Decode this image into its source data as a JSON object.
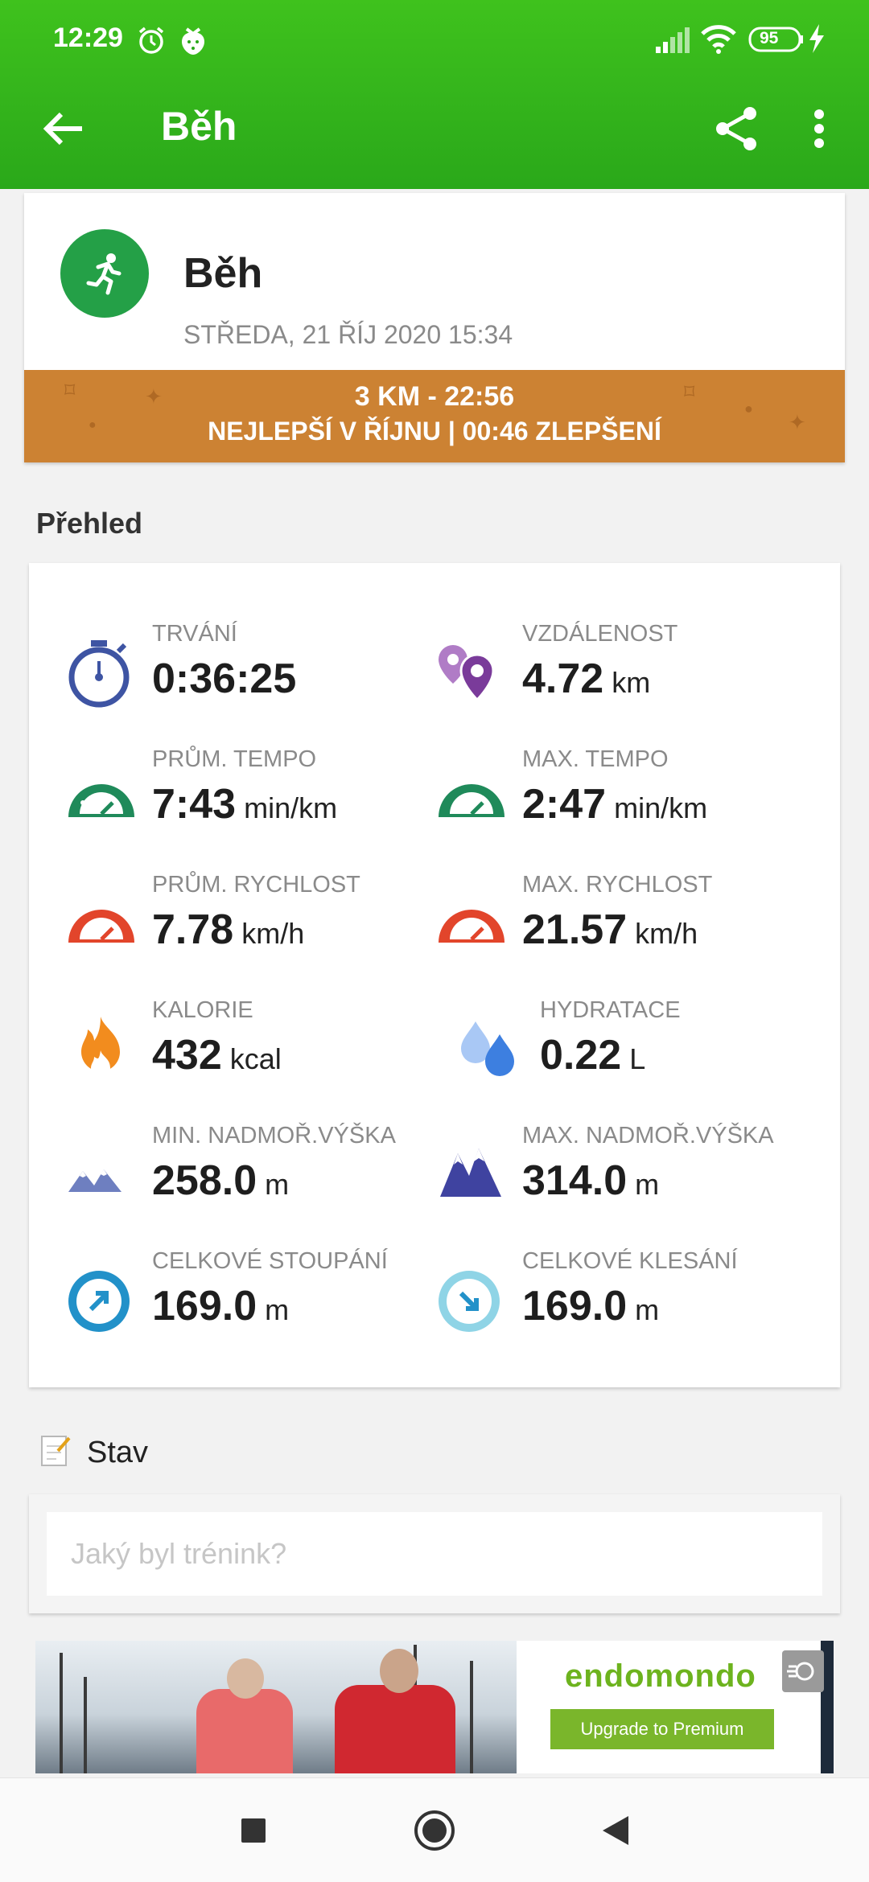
{
  "status_bar": {
    "time": "12:29",
    "battery": "95"
  },
  "toolbar": {
    "title": "Běh"
  },
  "workout": {
    "title": "Běh",
    "date": "STŘEDA, 21 ŘÍJ 2020 15:34",
    "banner_line1": "3 KM  -  22:56",
    "banner_line2": "NEJLEPŠÍ V ŘÍJNU  |  00:46 ZLEPŠENÍ"
  },
  "overview": {
    "section_title": "Přehled",
    "stats": [
      {
        "label": "TRVÁNÍ",
        "value": "0:36:25",
        "unit": "",
        "icon": "stopwatch-icon"
      },
      {
        "label": "VZDÁLENOST",
        "value": "4.72",
        "unit": "km",
        "icon": "location-pins-icon"
      },
      {
        "label": "PRŮM. TEMPO",
        "value": "7:43",
        "unit": "min/km",
        "icon": "green-gauge-icon"
      },
      {
        "label": "MAX. TEMPO",
        "value": "2:47",
        "unit": "min/km",
        "icon": "green-gauge-icon"
      },
      {
        "label": "PRŮM. RYCHLOST",
        "value": "7.78",
        "unit": "km/h",
        "icon": "red-gauge-icon"
      },
      {
        "label": "MAX. RYCHLOST",
        "value": "21.57",
        "unit": "km/h",
        "icon": "red-gauge-icon"
      },
      {
        "label": "KALORIE",
        "value": "432",
        "unit": "kcal",
        "icon": "flame-icon"
      },
      {
        "label": "HYDRATACE",
        "value": "0.22",
        "unit": "L",
        "icon": "water-drops-icon"
      },
      {
        "label": "MIN. NADMOŘ.VÝŠKA",
        "value": "258.0",
        "unit": "m",
        "icon": "low-mountain-icon"
      },
      {
        "label": "MAX. NADMOŘ.VÝŠKA",
        "value": "314.0",
        "unit": "m",
        "icon": "high-mountain-icon"
      },
      {
        "label": "CELKOVÉ STOUPÁNÍ",
        "value": "169.0",
        "unit": "m",
        "icon": "ascent-arrow-icon"
      },
      {
        "label": "CELKOVÉ KLESÁNÍ",
        "value": "169.0",
        "unit": "m",
        "icon": "descent-arrow-icon"
      }
    ]
  },
  "stav": {
    "title": "Stav",
    "placeholder": "Jaký byl trénink?"
  },
  "ad": {
    "brand": "endomondo",
    "cta": "Upgrade to Premium"
  },
  "colors": {
    "header": "#3fc21d",
    "banner": "#cc8233",
    "workout_icon": "#24a047"
  }
}
